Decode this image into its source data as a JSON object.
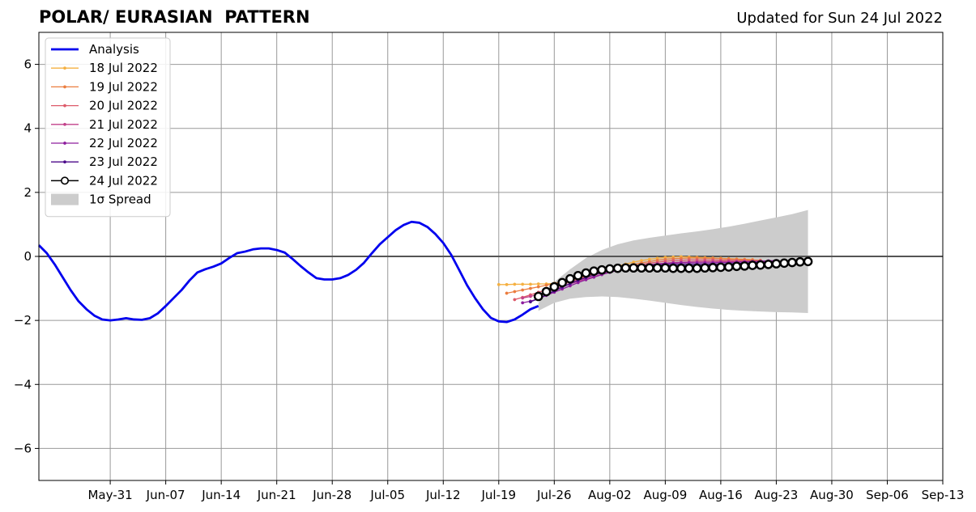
{
  "header": {
    "title": "POLAR/ EURASIAN  PATTERN",
    "updated": "Updated for Sun 24 Jul 2022"
  },
  "chart_data": {
    "type": "line",
    "title": "POLAR/ EURASIAN  PATTERN",
    "xlabel": "",
    "ylabel": "",
    "xlim": [
      "2022-05-22",
      "2022-09-13"
    ],
    "ylim": [
      -7,
      7
    ],
    "x_ticks": [
      "May-31",
      "Jun-07",
      "Jun-14",
      "Jun-21",
      "Jun-28",
      "Jul-05",
      "Jul-12",
      "Jul-19",
      "Jul-26",
      "Aug-02",
      "Aug-09",
      "Aug-16",
      "Aug-23",
      "Aug-30",
      "Sep-06",
      "Sep-13"
    ],
    "x_tick_dates": [
      "2022-05-31",
      "2022-06-07",
      "2022-06-14",
      "2022-06-21",
      "2022-06-28",
      "2022-07-05",
      "2022-07-12",
      "2022-07-19",
      "2022-07-26",
      "2022-08-02",
      "2022-08-09",
      "2022-08-16",
      "2022-08-23",
      "2022-08-30",
      "2022-09-06",
      "2022-09-13"
    ],
    "y_ticks": [
      -6,
      -4,
      -2,
      0,
      2,
      4,
      6
    ],
    "y_tick_labels": [
      "−6",
      "−4",
      "−2",
      "0",
      "2",
      "4",
      "6"
    ],
    "grid": true,
    "legend_position": "top-left",
    "colors": {
      "analysis": "#0000ee",
      "spread": "#cccccc",
      "zero_line": "#555555",
      "grid": "#999999"
    },
    "analysis": {
      "name": "Analysis",
      "x": [
        "2022-05-22",
        "2022-05-23",
        "2022-05-24",
        "2022-05-25",
        "2022-05-26",
        "2022-05-27",
        "2022-05-28",
        "2022-05-29",
        "2022-05-30",
        "2022-05-31",
        "2022-06-01",
        "2022-06-02",
        "2022-06-03",
        "2022-06-04",
        "2022-06-05",
        "2022-06-06",
        "2022-06-07",
        "2022-06-08",
        "2022-06-09",
        "2022-06-10",
        "2022-06-11",
        "2022-06-12",
        "2022-06-13",
        "2022-06-14",
        "2022-06-15",
        "2022-06-16",
        "2022-06-17",
        "2022-06-18",
        "2022-06-19",
        "2022-06-20",
        "2022-06-21",
        "2022-06-22",
        "2022-06-23",
        "2022-06-24",
        "2022-06-25",
        "2022-06-26",
        "2022-06-27",
        "2022-06-28",
        "2022-06-29",
        "2022-06-30",
        "2022-07-01",
        "2022-07-02",
        "2022-07-03",
        "2022-07-04",
        "2022-07-05",
        "2022-07-06",
        "2022-07-07",
        "2022-07-08",
        "2022-07-09",
        "2022-07-10",
        "2022-07-11",
        "2022-07-12",
        "2022-07-13",
        "2022-07-14",
        "2022-07-15",
        "2022-07-16",
        "2022-07-17",
        "2022-07-18",
        "2022-07-19",
        "2022-07-20",
        "2022-07-21",
        "2022-07-22",
        "2022-07-23",
        "2022-07-24"
      ],
      "values": [
        0.35,
        0.1,
        -0.25,
        -0.65,
        -1.05,
        -1.4,
        -1.65,
        -1.85,
        -1.97,
        -2.0,
        -1.97,
        -1.93,
        -1.97,
        -1.98,
        -1.93,
        -1.78,
        -1.55,
        -1.3,
        -1.05,
        -0.75,
        -0.5,
        -0.4,
        -0.32,
        -0.22,
        -0.05,
        0.1,
        0.15,
        0.22,
        0.25,
        0.25,
        0.2,
        0.12,
        -0.08,
        -0.3,
        -0.5,
        -0.68,
        -0.72,
        -0.72,
        -0.68,
        -0.58,
        -0.42,
        -0.2,
        0.1,
        0.38,
        0.6,
        0.82,
        0.98,
        1.08,
        1.05,
        0.92,
        0.7,
        0.42,
        0.05,
        -0.42,
        -0.9,
        -1.3,
        -1.65,
        -1.92,
        -2.03,
        -2.05,
        -1.97,
        -1.82,
        -1.65,
        -1.55
      ]
    },
    "forecasts": [
      {
        "name": "18 Jul 2022",
        "color": "#f5b041",
        "start": "2022-07-19",
        "values": [
          -0.88,
          -0.88,
          -0.87,
          -0.87,
          -0.87,
          -0.86,
          -0.86,
          -0.84,
          -0.8,
          -0.75,
          -0.68,
          -0.6,
          -0.52,
          -0.44,
          -0.36,
          -0.3,
          -0.24,
          -0.18,
          -0.13,
          -0.09,
          -0.06,
          -0.03,
          -0.02,
          -0.01,
          -0.02,
          -0.03,
          -0.04,
          -0.05,
          -0.06,
          -0.07,
          -0.08,
          -0.09,
          -0.1
        ]
      },
      {
        "name": "19 Jul 2022",
        "color": "#eb7d3f",
        "start": "2022-07-20",
        "values": [
          -1.15,
          -1.1,
          -1.05,
          -1.0,
          -0.95,
          -0.9,
          -0.85,
          -0.8,
          -0.74,
          -0.68,
          -0.62,
          -0.55,
          -0.48,
          -0.42,
          -0.36,
          -0.3,
          -0.25,
          -0.2,
          -0.16,
          -0.12,
          -0.09,
          -0.07,
          -0.06,
          -0.05,
          -0.05,
          -0.06,
          -0.06,
          -0.07,
          -0.08,
          -0.09,
          -0.1,
          -0.11,
          -0.12
        ]
      },
      {
        "name": "20 Jul 2022",
        "color": "#dd5a6a",
        "start": "2022-07-21",
        "values": [
          -1.35,
          -1.28,
          -1.2,
          -1.12,
          -1.04,
          -0.96,
          -0.88,
          -0.8,
          -0.72,
          -0.65,
          -0.58,
          -0.51,
          -0.45,
          -0.39,
          -0.34,
          -0.29,
          -0.25,
          -0.21,
          -0.18,
          -0.15,
          -0.13,
          -0.12,
          -0.11,
          -0.11,
          -0.11,
          -0.11,
          -0.12,
          -0.12,
          -0.13,
          -0.13,
          -0.14,
          -0.14,
          -0.15
        ]
      },
      {
        "name": "21 Jul 2022",
        "color": "#c2418a",
        "start": "2022-07-22",
        "values": [
          -1.3,
          -1.25,
          -1.18,
          -1.1,
          -1.02,
          -0.94,
          -0.86,
          -0.78,
          -0.7,
          -0.63,
          -0.56,
          -0.49,
          -0.43,
          -0.38,
          -0.33,
          -0.29,
          -0.26,
          -0.23,
          -0.21,
          -0.19,
          -0.18,
          -0.17,
          -0.16,
          -0.16,
          -0.16,
          -0.16,
          -0.16,
          -0.16,
          -0.16,
          -0.16,
          -0.16,
          -0.16,
          -0.16
        ]
      },
      {
        "name": "22 Jul 2022",
        "color": "#8e1e9e",
        "start": "2022-07-22",
        "values": [
          -1.45,
          -1.4,
          -1.32,
          -1.22,
          -1.12,
          -1.02,
          -0.92,
          -0.82,
          -0.73,
          -0.65,
          -0.57,
          -0.5,
          -0.44,
          -0.38,
          -0.33,
          -0.29,
          -0.26,
          -0.24,
          -0.22,
          -0.21,
          -0.2,
          -0.2,
          -0.2,
          -0.2,
          -0.2,
          -0.19,
          -0.19,
          -0.18,
          -0.17,
          -0.16,
          -0.15,
          -0.14,
          -0.13
        ]
      },
      {
        "name": "23 Jul 2022",
        "color": "#4b0a8a",
        "start": "2022-07-23",
        "values": [
          -1.42,
          -1.32,
          -1.2,
          -1.08,
          -0.96,
          -0.85,
          -0.75,
          -0.66,
          -0.58,
          -0.51,
          -0.45,
          -0.4,
          -0.36,
          -0.33,
          -0.3,
          -0.28,
          -0.27,
          -0.26,
          -0.25,
          -0.25,
          -0.25,
          -0.25,
          -0.25,
          -0.24,
          -0.24,
          -0.23,
          -0.22,
          -0.21,
          -0.2,
          -0.19,
          -0.18,
          -0.17,
          -0.16
        ]
      },
      {
        "name": "24 Jul 2022",
        "color": "#000000",
        "marker_fill": "#ffffff",
        "start": "2022-07-24",
        "values": [
          -1.25,
          -1.1,
          -0.95,
          -0.82,
          -0.7,
          -0.6,
          -0.52,
          -0.46,
          -0.42,
          -0.39,
          -0.37,
          -0.36,
          -0.36,
          -0.36,
          -0.36,
          -0.36,
          -0.36,
          -0.37,
          -0.37,
          -0.37,
          -0.37,
          -0.36,
          -0.35,
          -0.34,
          -0.33,
          -0.31,
          -0.3,
          -0.28,
          -0.27,
          -0.25,
          -0.23,
          -0.21,
          -0.19,
          -0.17,
          -0.16
        ]
      }
    ],
    "spread": {
      "name": "1σ Spread",
      "x": [
        "2022-07-24",
        "2022-07-26",
        "2022-07-28",
        "2022-07-30",
        "2022-08-01",
        "2022-08-03",
        "2022-08-05",
        "2022-08-07",
        "2022-08-09",
        "2022-08-11",
        "2022-08-13",
        "2022-08-15",
        "2022-08-17",
        "2022-08-19",
        "2022-08-21",
        "2022-08-23",
        "2022-08-25",
        "2022-08-27"
      ],
      "upper": [
        -1.45,
        -0.8,
        -0.4,
        -0.05,
        0.2,
        0.38,
        0.5,
        0.58,
        0.65,
        0.72,
        0.78,
        0.85,
        0.93,
        1.02,
        1.12,
        1.22,
        1.32,
        1.45
      ],
      "lower": [
        -1.7,
        -1.45,
        -1.32,
        -1.27,
        -1.25,
        -1.27,
        -1.32,
        -1.38,
        -1.45,
        -1.52,
        -1.58,
        -1.63,
        -1.67,
        -1.7,
        -1.72,
        -1.74,
        -1.75,
        -1.77
      ]
    }
  }
}
